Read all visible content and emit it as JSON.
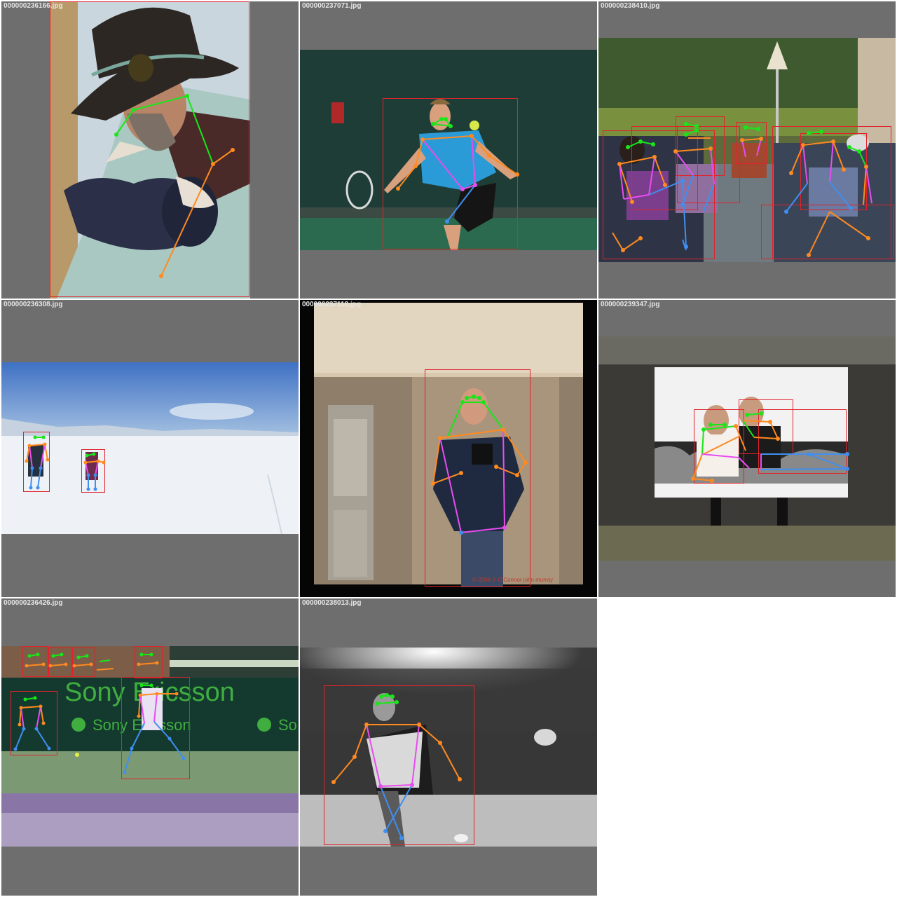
{
  "grid": {
    "tiles": [
      {
        "filename": "000000236166.jpg",
        "scene": "man-hat-dog"
      },
      {
        "filename": "000000237071.jpg",
        "scene": "tennis-player"
      },
      {
        "filename": "000000238410.jpg",
        "scene": "patio-group"
      },
      {
        "filename": "000000236308.jpg",
        "scene": "snow-skiers"
      },
      {
        "filename": "000000237118.jpg",
        "scene": "elevator-selfie"
      },
      {
        "filename": "000000239347.jpg",
        "scene": "wedding-photo"
      },
      {
        "filename": "000000236426.jpg",
        "scene": "tennis-stadium"
      },
      {
        "filename": "000000238013.jpg",
        "scene": "bw-tennis"
      }
    ],
    "watermark_text": "© 2008 J. O'Connor john murray"
  },
  "colors": {
    "tile_background": "#6e6e6e",
    "bbox": "#e0232b",
    "skeleton_head": "#19e619",
    "skeleton_arm": "#ff8a1f",
    "skeleton_torso": "#e84cf0",
    "skeleton_leg": "#3f8ff0",
    "skeleton_shoulder": "#ff8a1f"
  }
}
